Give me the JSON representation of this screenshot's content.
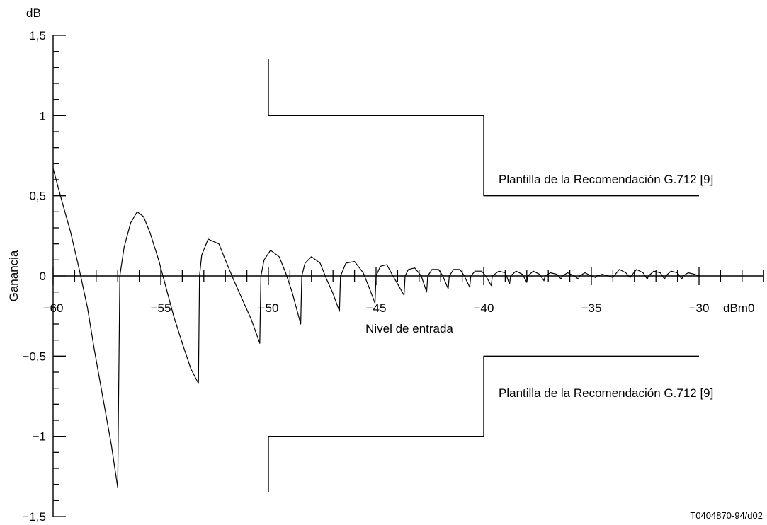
{
  "chart_data": {
    "type": "line",
    "xlabel": "Nivel de entrada",
    "ylabel": "Ganancia",
    "x_unit": "dBm0",
    "y_unit": "dB",
    "xlim": [
      -60,
      -30
    ],
    "ylim": [
      -1.5,
      1.5
    ],
    "x_tick_values": [
      -60,
      -55,
      -50,
      -45,
      -40,
      -35,
      -30
    ],
    "x_tick_labels": [
      "−60",
      "−55",
      "−50",
      "−45",
      "−40",
      "−35",
      "−30"
    ],
    "y_tick_values": [
      1.5,
      1,
      0.5,
      0,
      -0.5,
      -1,
      -1.5
    ],
    "y_tick_labels": [
      "1,5",
      "1",
      "0,5",
      "0",
      "−0,5",
      "−1",
      "−1,5"
    ],
    "grid": false,
    "annotations": [
      "Plantilla de la Recomendación G.712 [9]",
      "Plantilla de la Recomendación G.712 [9]"
    ],
    "figure_id": "T0404870-94/d02",
    "series": [
      {
        "role": "gain-curve",
        "x": [
          -60,
          -59.6,
          -59.2,
          -58.8,
          -58.4,
          -58.1,
          -57.7,
          -57.3,
          -57.0,
          -56.9,
          -56.7,
          -56.4,
          -56.1,
          -55.8,
          -55.5,
          -55.1,
          -54.7,
          -54.4,
          -54.0,
          -53.6,
          -53.25,
          -53.2,
          -53.1,
          -52.8,
          -52.3,
          -52.0,
          -51.6,
          -51.2,
          -50.8,
          -50.4,
          -50.35,
          -50.2,
          -49.9,
          -49.5,
          -49.2,
          -48.9,
          -48.5,
          -48.45,
          -48.3,
          -48.0,
          -47.6,
          -47.3,
          -47.0,
          -46.7,
          -46.65,
          -46.4,
          -46.0,
          -45.6,
          -45.3,
          -45.05,
          -45.0,
          -44.8,
          -44.5,
          -44.3,
          -44.0,
          -43.7,
          -43.65,
          -43.5,
          -43.2,
          -42.9,
          -42.65,
          -42.6,
          -42.4,
          -42.1,
          -41.9,
          -41.65,
          -41.6,
          -41.4,
          -41.1,
          -40.9,
          -40.65,
          -40.6,
          -40.4,
          -40.1,
          -39.9,
          -39.65,
          -39.6,
          -39.3,
          -39.0,
          -38.8,
          -38.75,
          -38.5,
          -38.2,
          -38.0,
          -37.95,
          -37.7,
          -37.4,
          -37.2,
          -37.15,
          -36.9,
          -36.6,
          -36.4,
          -36.35,
          -36.1,
          -35.8,
          -35.6,
          -35.55,
          -35.3,
          -35.0,
          -34.8,
          -34.75,
          -34.5,
          -34.2,
          -34.0,
          -33.95,
          -33.7,
          -33.4,
          -33.2,
          -33.15,
          -32.9,
          -32.6,
          -32.4,
          -32.35,
          -32.1,
          -31.8,
          -31.6,
          -31.55,
          -31.3,
          -31.0,
          -30.8,
          -30.75,
          -30.5,
          -30.2,
          -30.0
        ],
        "y": [
          0.67,
          0.47,
          0.28,
          0.05,
          -0.2,
          -0.45,
          -0.75,
          -1.05,
          -1.32,
          0.0,
          0.18,
          0.33,
          0.4,
          0.37,
          0.27,
          0.1,
          -0.1,
          -0.25,
          -0.42,
          -0.58,
          -0.67,
          0.0,
          0.13,
          0.23,
          0.2,
          0.1,
          -0.03,
          -0.15,
          -0.27,
          -0.42,
          0.0,
          0.1,
          0.16,
          0.12,
          0.02,
          -0.1,
          -0.3,
          0.0,
          0.08,
          0.12,
          0.08,
          -0.02,
          -0.11,
          -0.22,
          0.0,
          0.08,
          0.09,
          0.02,
          -0.08,
          -0.17,
          0.0,
          0.06,
          0.07,
          0.02,
          -0.05,
          -0.12,
          0.0,
          0.04,
          0.05,
          0.0,
          -0.1,
          0.0,
          0.04,
          0.04,
          0.0,
          -0.08,
          0.0,
          0.04,
          0.04,
          0.0,
          -0.07,
          0.0,
          0.03,
          0.03,
          0.0,
          -0.06,
          0.0,
          0.03,
          0.02,
          -0.05,
          0.0,
          0.03,
          0.01,
          -0.04,
          0.0,
          0.03,
          0.01,
          -0.03,
          0.0,
          0.02,
          0.01,
          -0.02,
          0.0,
          0.02,
          0.0,
          -0.02,
          0.0,
          0.02,
          0.0,
          -0.01,
          0.0,
          0.01,
          0.0,
          -0.01,
          0.0,
          0.04,
          0.02,
          -0.01,
          0.0,
          0.04,
          0.02,
          -0.02,
          0.0,
          0.03,
          0.02,
          -0.02,
          0.0,
          0.03,
          0.02,
          -0.02,
          0.0,
          0.02,
          0.01,
          0.0
        ]
      },
      {
        "role": "upper-mask",
        "x": [
          -50,
          -50,
          -40,
          -40,
          -30
        ],
        "y": [
          1.35,
          1.0,
          1.0,
          0.5,
          0.5
        ]
      },
      {
        "role": "lower-mask",
        "x": [
          -50,
          -50,
          -40,
          -40,
          -30
        ],
        "y": [
          -1.35,
          -1.0,
          -1.0,
          -0.5,
          -0.5
        ]
      }
    ]
  }
}
